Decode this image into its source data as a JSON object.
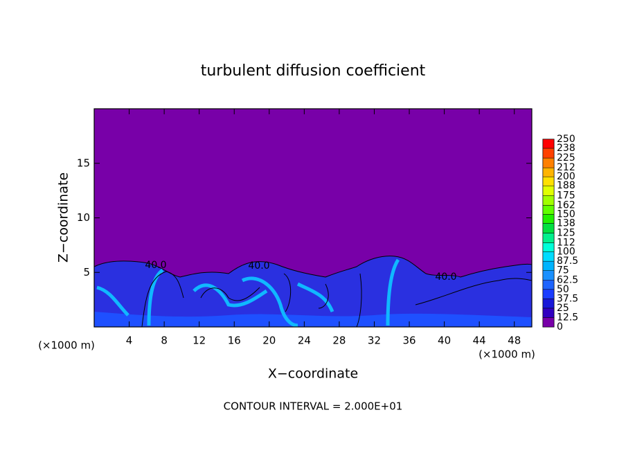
{
  "chart_data": {
    "type": "contour",
    "title": "turbulent diffusion coefficient",
    "x_label": "X−coordinate",
    "y_label": "Z−coordinate",
    "x_unit": "(×1000 m)",
    "x_unit_right": "(×1000 m)",
    "footer": "CONTOUR INTERVAL = 2.000E+01",
    "contour_labels": [
      "40.0",
      "40.0",
      "40.0"
    ],
    "xlim": [
      0,
      50
    ],
    "xticks": [
      4,
      8,
      12,
      16,
      20,
      24,
      28,
      32,
      36,
      40,
      44,
      48
    ],
    "ylim": [
      0,
      20
    ],
    "yticks": [
      5,
      10,
      15
    ],
    "colorbar": {
      "clim": [
        0,
        250
      ],
      "levels": [
        0,
        12.5,
        25,
        37.5,
        50,
        62.5,
        75,
        87.5,
        100,
        112,
        125,
        138,
        150,
        162,
        175,
        188,
        200,
        212,
        225,
        238,
        250
      ],
      "colors": [
        "#7800a8",
        "#3000c0",
        "#1818d8",
        "#1a3cff",
        "#1e64ff",
        "#1a90ff",
        "#00b4ff",
        "#00dcff",
        "#00ffd8",
        "#00f08c",
        "#00e040",
        "#20f000",
        "#60ff00",
        "#a0ff00",
        "#e0ff00",
        "#ffe000",
        "#ffb400",
        "#ff8000",
        "#ff4000",
        "#ff0000",
        "#ff8080"
      ]
    }
  }
}
